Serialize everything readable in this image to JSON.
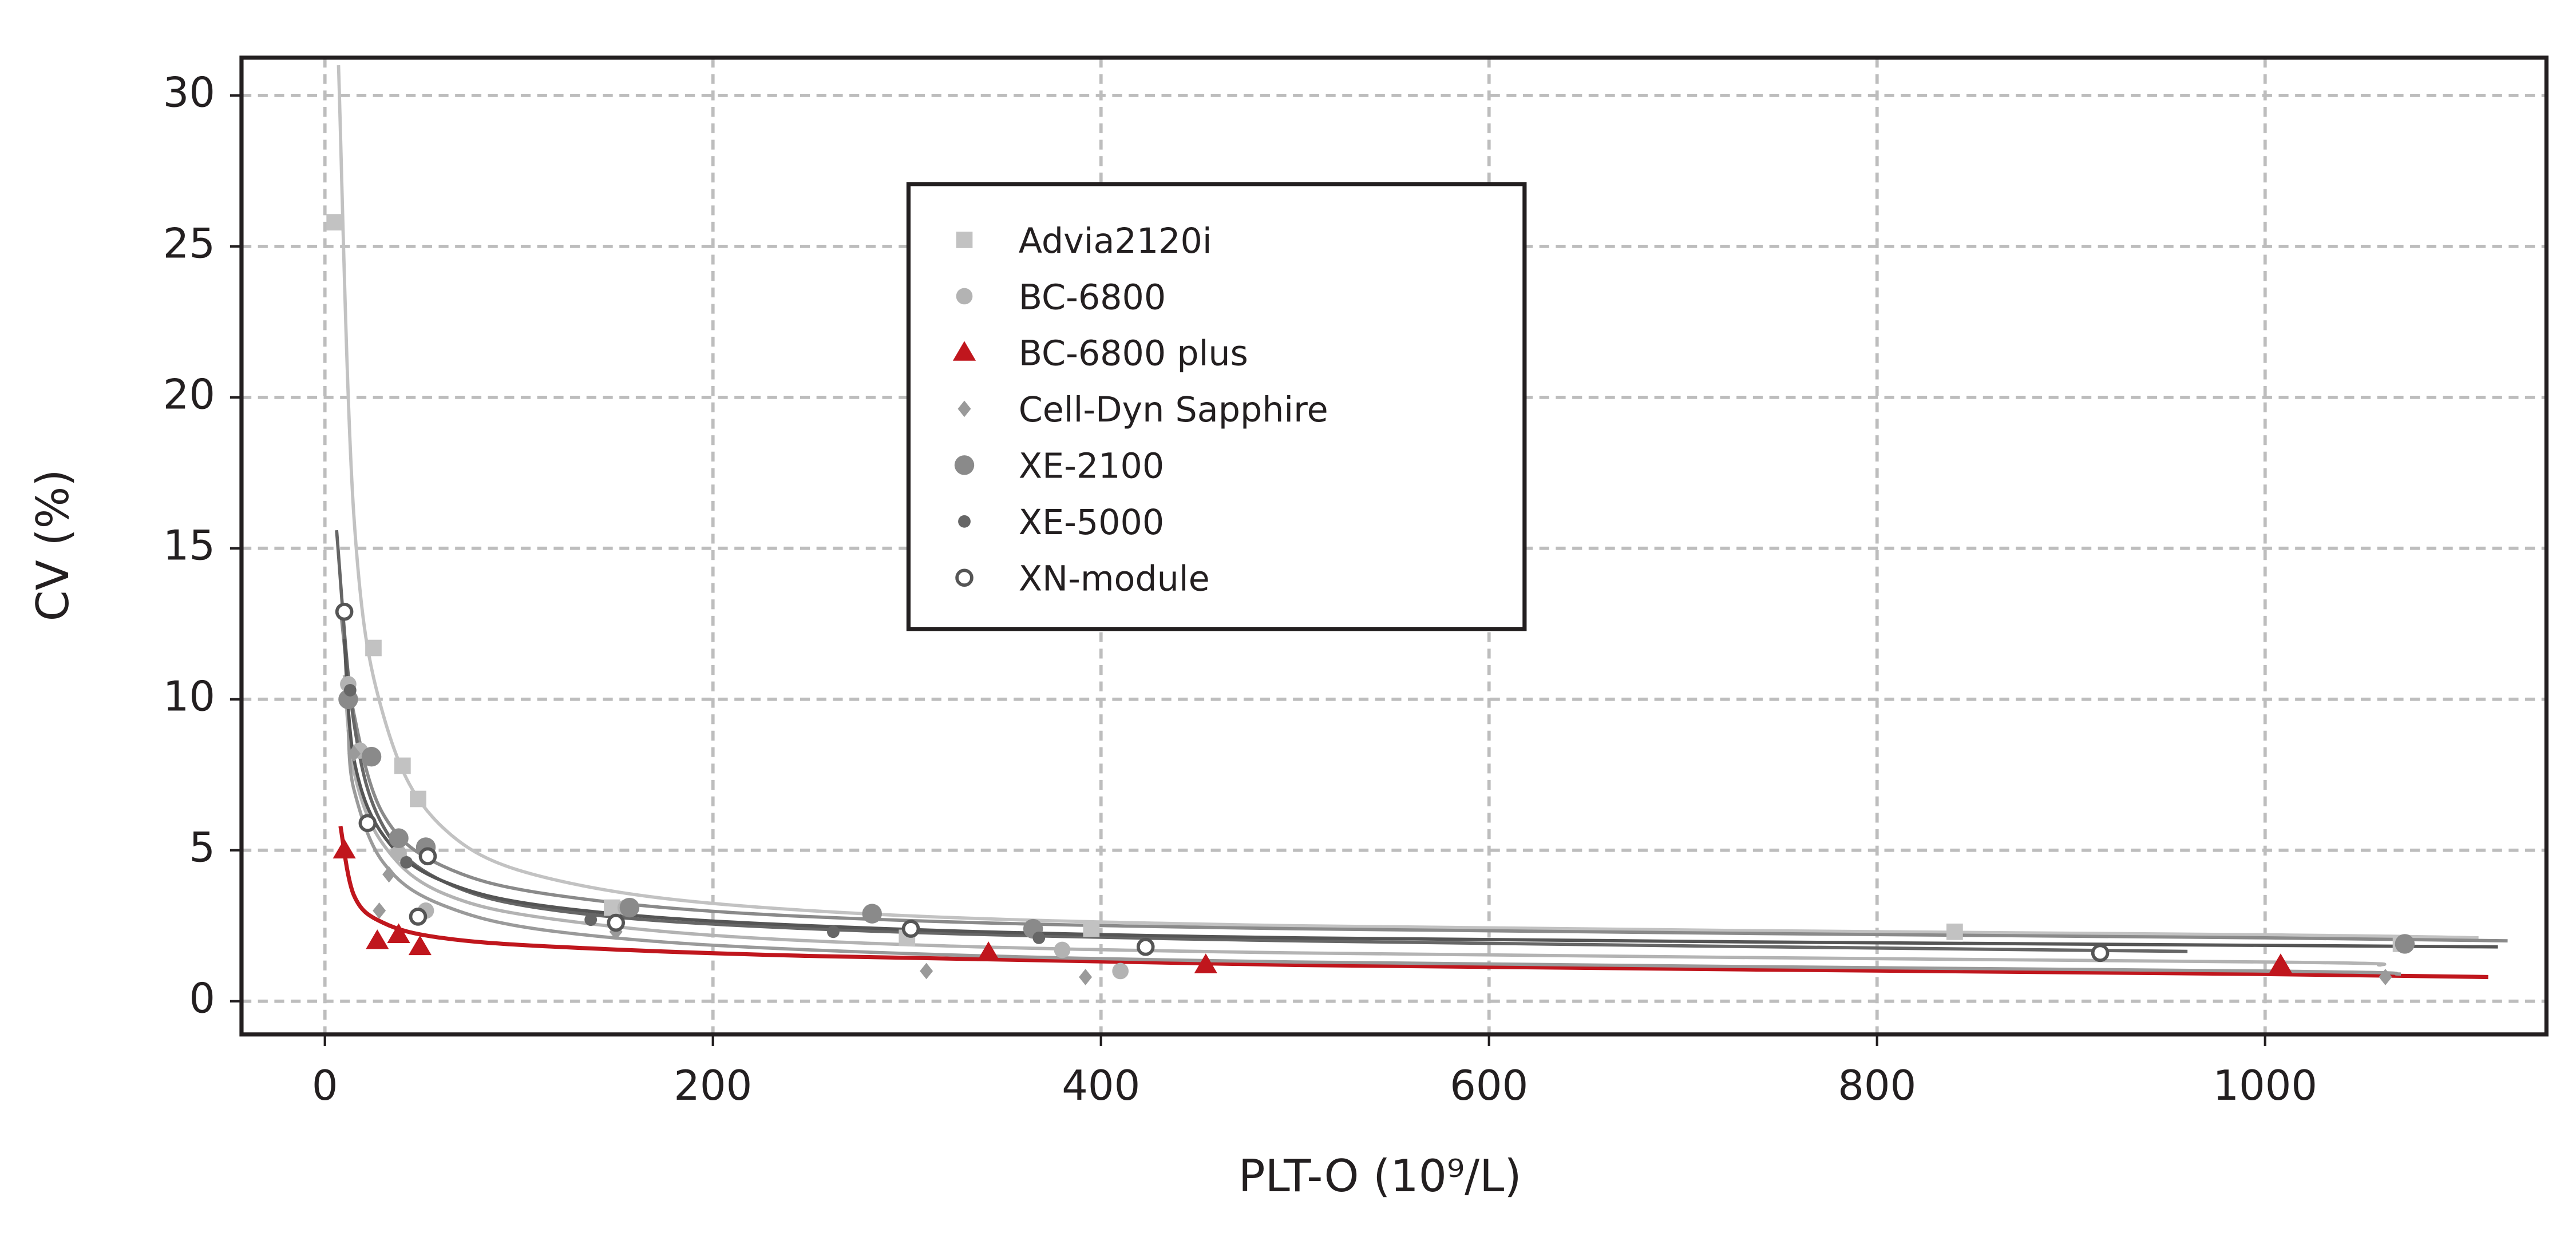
{
  "chart_data": {
    "type": "scatter",
    "x_label": "PLT-O (10⁹/L)",
    "y_label": "CV (%)",
    "xlim": [
      -43,
      1145
    ],
    "ylim": [
      -1.1,
      31.25
    ],
    "xticks": [
      0,
      200,
      400,
      600,
      800,
      1000
    ],
    "yticks": [
      0,
      5,
      10,
      15,
      20,
      25,
      30
    ],
    "grid": true,
    "legend": "top-center",
    "series": [
      {
        "name": "Advia2120i",
        "color": "#c2c2c2",
        "marker": "square",
        "x": [
          5,
          25,
          40,
          48,
          148,
          300,
          395,
          840,
          1070
        ],
        "values": [
          25.8,
          11.7,
          7.8,
          6.7,
          3.1,
          2.1,
          2.4,
          2.3,
          1.9
        ],
        "fit_x": [
          7,
          15,
          30,
          60,
          120,
          250,
          500,
          1000,
          1110
        ],
        "fit_values": [
          31,
          16,
          9.5,
          5.8,
          4.0,
          3.0,
          2.5,
          2.2,
          2.1
        ]
      },
      {
        "name": "BC-6800",
        "color": "#b3b3b3",
        "marker": "circle",
        "x": [
          12,
          18,
          38,
          52,
          155,
          380,
          410
        ],
        "values": [
          10.5,
          8.3,
          4.9,
          3.0,
          3.1,
          1.7,
          1.0
        ],
        "fit_x": [
          10,
          15,
          30,
          60,
          120,
          250,
          500,
          1000,
          1060
        ],
        "fit_values": [
          10.8,
          7.6,
          5.2,
          3.6,
          2.7,
          2.0,
          1.6,
          1.3,
          1.2
        ]
      },
      {
        "name": "BC-6800 plus",
        "color": "#c0161d",
        "marker": "triangle",
        "x": [
          10,
          27,
          38,
          49,
          342,
          454,
          1008
        ],
        "values": [
          5.0,
          2.0,
          2.2,
          1.8,
          1.6,
          1.2,
          1.2
        ],
        "fit_x": [
          8,
          15,
          30,
          60,
          120,
          250,
          500,
          1000,
          1115
        ],
        "fit_values": [
          5.8,
          3.5,
          2.6,
          2.1,
          1.8,
          1.5,
          1.2,
          0.9,
          0.8
        ]
      },
      {
        "name": "Cell-Dyn Sapphire",
        "color": "#9a9a9a",
        "marker": "diamond",
        "x": [
          15,
          28,
          33,
          150,
          310,
          392,
          1062
        ],
        "values": [
          8.2,
          3.0,
          4.2,
          2.3,
          1.0,
          0.8,
          0.8
        ],
        "fit_x": [
          12,
          15,
          30,
          60,
          120,
          250,
          500,
          1000,
          1070
        ],
        "fit_values": [
          9,
          7,
          4.6,
          3.2,
          2.3,
          1.7,
          1.3,
          1.0,
          0.9
        ]
      },
      {
        "name": "XE-2100",
        "color": "#8a8a8a",
        "marker": "big-circle",
        "x": [
          12,
          24,
          38,
          52,
          157,
          282,
          365,
          1072
        ],
        "values": [
          10.0,
          8.1,
          5.4,
          5.1,
          3.1,
          2.9,
          2.4,
          1.9
        ],
        "fit_x": [
          8,
          15,
          30,
          60,
          120,
          250,
          500,
          1000,
          1125
        ],
        "fit_values": [
          13,
          9.5,
          6.2,
          4.5,
          3.5,
          2.8,
          2.4,
          2.1,
          2.0
        ]
      },
      {
        "name": "XE-5000",
        "color": "#666666",
        "marker": "small-circle",
        "x": [
          13,
          42,
          137,
          262,
          368
        ],
        "values": [
          10.3,
          4.6,
          2.7,
          2.3,
          2.1
        ],
        "fit_x": [
          6,
          15,
          30,
          60,
          120,
          250,
          500,
          960
        ],
        "fit_values": [
          15.6,
          9.2,
          5.8,
          4.0,
          3.0,
          2.4,
          2.0,
          1.65
        ]
      },
      {
        "name": "XN-module",
        "color": "#555555",
        "marker": "open-circle",
        "x": [
          10,
          22,
          48,
          53,
          150,
          302,
          423,
          915
        ],
        "values": [
          12.9,
          5.9,
          2.8,
          4.8,
          2.6,
          2.4,
          1.8,
          1.6
        ],
        "fit_x": [
          10,
          15,
          30,
          60,
          120,
          250,
          500,
          1000,
          1120
        ],
        "fit_values": [
          12,
          8,
          5.5,
          4.0,
          3.1,
          2.5,
          2.1,
          1.85,
          1.8
        ]
      }
    ]
  }
}
